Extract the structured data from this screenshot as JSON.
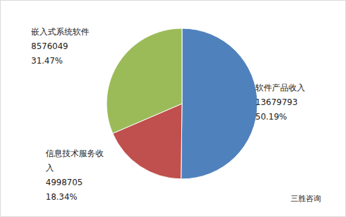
{
  "chart_data": {
    "type": "pie",
    "categories": [
      "软件产品收入",
      "信息技术服务收入",
      "嵌入式系统软件"
    ],
    "values": [
      50.19,
      18.34,
      31.47
    ],
    "value_labels": [
      "50.19%",
      "18.34%",
      "31.47%"
    ],
    "amounts": [
      13679793,
      4998705,
      8576049
    ],
    "colors": [
      "#4f81bd",
      "#c0504d",
      "#9bbb59"
    ],
    "data_labels": true,
    "annotation": "三胜咨询"
  }
}
